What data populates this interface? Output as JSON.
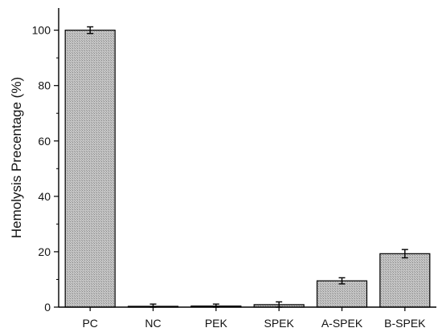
{
  "chart_data": {
    "type": "bar",
    "title": "",
    "xlabel": "",
    "ylabel": "Hemolysis Precentage (%)",
    "ylim": [
      0,
      108
    ],
    "yticks": [
      0,
      20,
      40,
      60,
      80,
      100
    ],
    "categories": [
      "PC",
      "NC",
      "PEK",
      "SPEK",
      "A-SPEK",
      "B-SPEK"
    ],
    "values": [
      100,
      0.3,
      0.4,
      0.9,
      9.5,
      19.3
    ],
    "errors": [
      1.2,
      0.8,
      0.7,
      1.0,
      1.1,
      1.5
    ],
    "bar_fill": "#b8b8b8",
    "bar_stroke": "#000000",
    "grid": false,
    "legend": "none"
  }
}
